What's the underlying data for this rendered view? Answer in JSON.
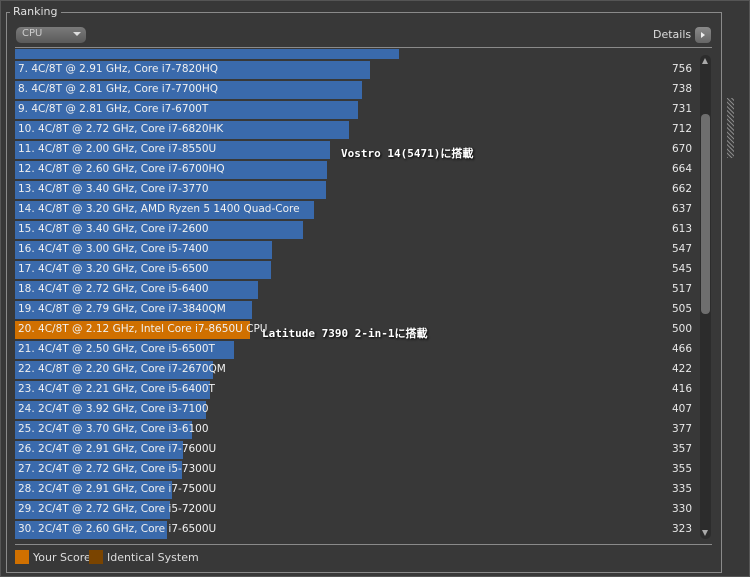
{
  "panel": {
    "title": "Ranking",
    "select_value": "CPU",
    "details_label": "Details"
  },
  "colors": {
    "bar": "#3a6aac",
    "your_score": "#d07000",
    "identical": "#7a4400"
  },
  "rows": [
    {
      "label": "",
      "score": "",
      "value": 818
    },
    {
      "label": "7. 4C/8T @ 2.91 GHz, Core i7-7820HQ",
      "score": "756",
      "value": 756
    },
    {
      "label": "8. 4C/8T @ 2.81 GHz, Core i7-7700HQ",
      "score": "738",
      "value": 738
    },
    {
      "label": "9. 4C/8T @ 2.81 GHz, Core i7-6700T",
      "score": "731",
      "value": 731
    },
    {
      "label": "10. 4C/8T @ 2.72 GHz, Core i7-6820HK",
      "score": "712",
      "value": 712
    },
    {
      "label": "11. 4C/8T @ 2.00 GHz, Core i7-8550U",
      "score": "670",
      "value": 670
    },
    {
      "label": "12. 4C/8T @ 2.60 GHz, Core i7-6700HQ",
      "score": "664",
      "value": 664
    },
    {
      "label": "13. 4C/8T @ 3.40 GHz, Core i7-3770",
      "score": "662",
      "value": 662
    },
    {
      "label": "14. 4C/8T @ 3.20 GHz, AMD Ryzen 5 1400 Quad-Core",
      "score": "637",
      "value": 637
    },
    {
      "label": "15. 4C/8T @ 3.40 GHz, Core i7-2600",
      "score": "613",
      "value": 613
    },
    {
      "label": "16. 4C/4T @ 3.00 GHz, Core i5-7400",
      "score": "547",
      "value": 547
    },
    {
      "label": "17. 4C/4T @ 3.20 GHz, Core i5-6500",
      "score": "545",
      "value": 545
    },
    {
      "label": "18. 4C/4T @ 2.72 GHz, Core i5-6400",
      "score": "517",
      "value": 517
    },
    {
      "label": "19. 4C/8T @ 2.79 GHz, Core i7-3840QM",
      "score": "505",
      "value": 505
    },
    {
      "label": "20. 4C/8T @ 2.12 GHz, Intel Core i7-8650U CPU",
      "score": "500",
      "value": 500,
      "yours": true
    },
    {
      "label": "21. 4C/4T @ 2.50 GHz, Core i5-6500T",
      "score": "466",
      "value": 466
    },
    {
      "label": "22. 4C/8T @ 2.20 GHz, Core i7-2670QM",
      "score": "422",
      "value": 422
    },
    {
      "label": "23. 4C/4T @ 2.21 GHz, Core i5-6400T",
      "score": "416",
      "value": 416
    },
    {
      "label": "24. 2C/4T @ 3.92 GHz, Core i3-7100",
      "score": "407",
      "value": 407
    },
    {
      "label": "25. 2C/4T @ 3.70 GHz, Core i3-6100",
      "score": "377",
      "value": 377
    },
    {
      "label": "26. 2C/4T @ 2.91 GHz, Core i7-7600U",
      "score": "357",
      "value": 357
    },
    {
      "label": "27. 2C/4T @ 2.72 GHz, Core i5-7300U",
      "score": "355",
      "value": 355
    },
    {
      "label": "28. 2C/4T @ 2.91 GHz, Core i7-7500U",
      "score": "335",
      "value": 335
    },
    {
      "label": "29. 2C/4T @ 2.72 GHz, Core i5-7200U",
      "score": "330",
      "value": 330
    },
    {
      "label": "30. 2C/4T @ 2.60 GHz, Core i7-6500U",
      "score": "323",
      "value": 323
    }
  ],
  "annotations": {
    "vostro": "Vostro 14(5471)に搭載",
    "latitude": "Latitude 7390 2-in-1に搭載"
  },
  "legend": {
    "your_score": "Your Score",
    "identical": "Identical System"
  }
}
